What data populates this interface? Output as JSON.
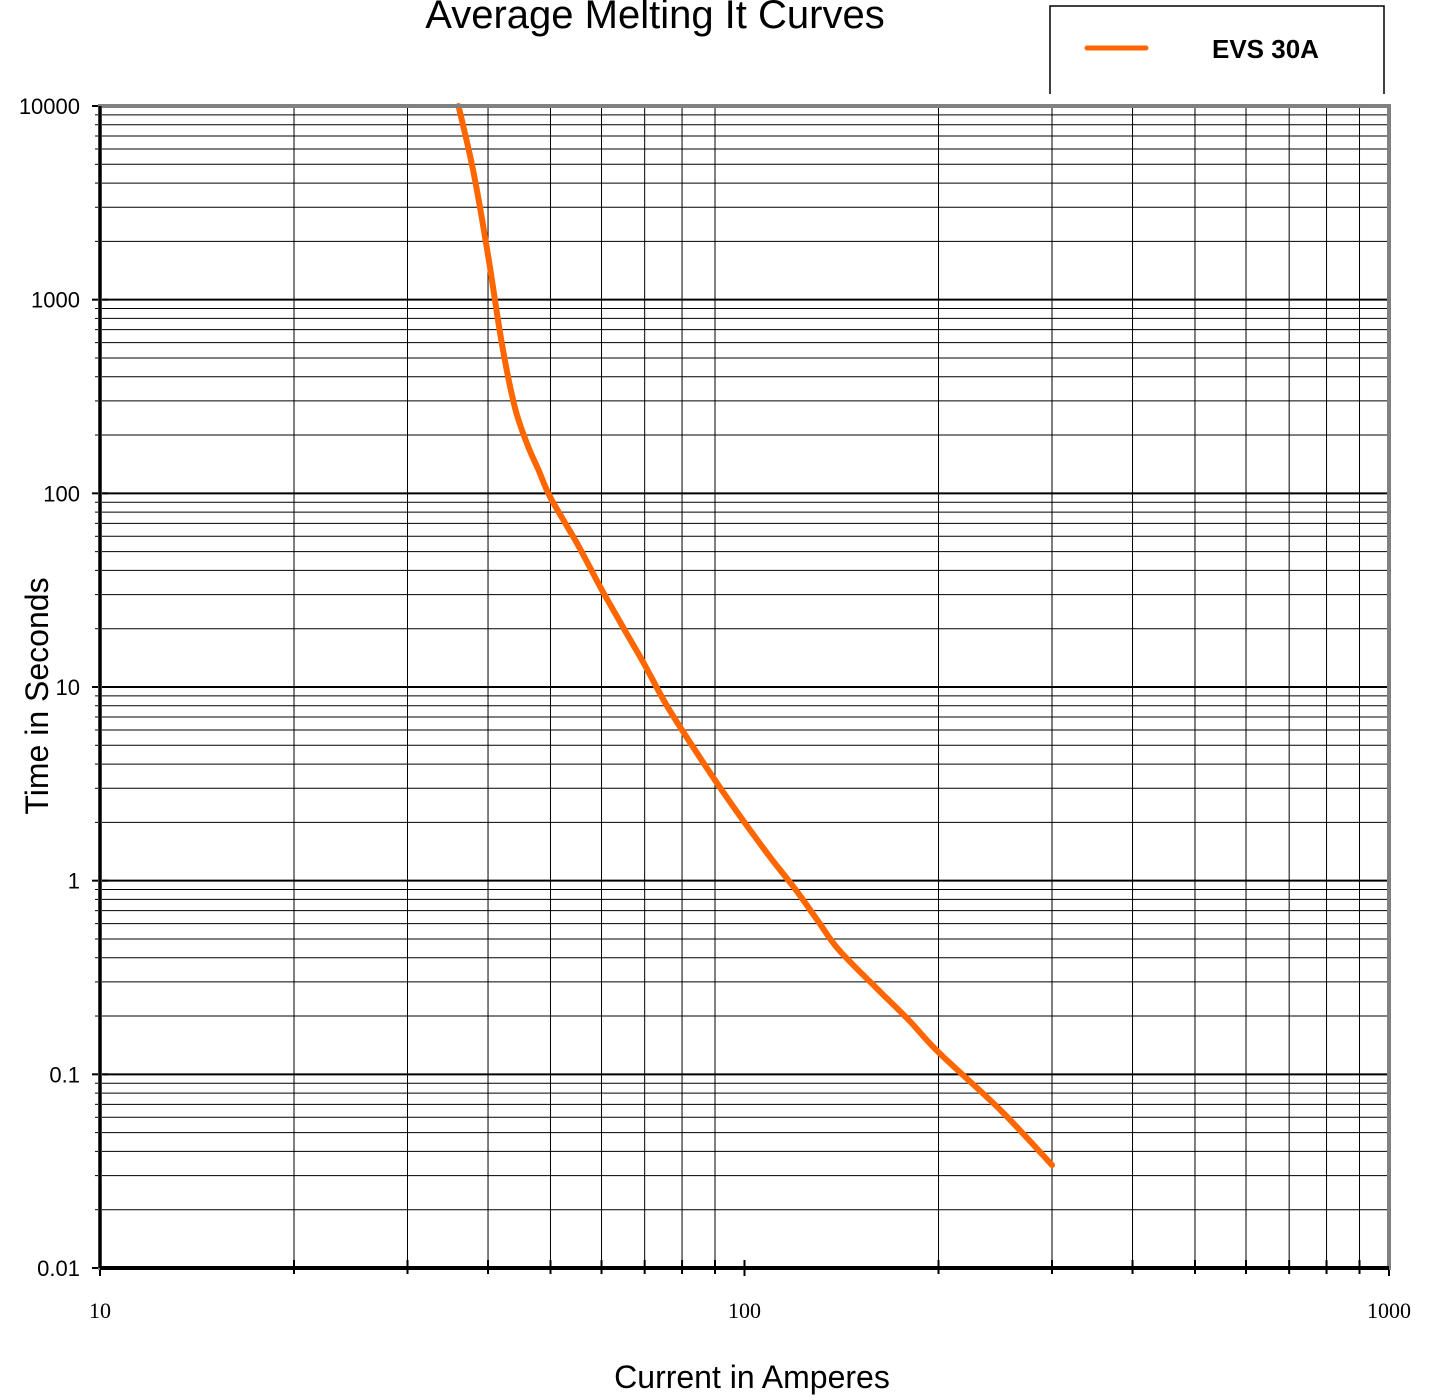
{
  "chart_data": {
    "type": "line",
    "title": "Average Melting It Curves",
    "xlabel": "Current in Amperes",
    "ylabel": "Time in Seconds",
    "xscale": "log",
    "yscale": "log",
    "xlim": [
      10,
      1000
    ],
    "ylim": [
      0.01,
      10000
    ],
    "xticks": [
      "10",
      "100",
      "1000"
    ],
    "yticks": [
      "0.01",
      "0.1",
      "1",
      "10",
      "100",
      "1000",
      "10000"
    ],
    "grid": true,
    "legend": "top-right",
    "series": [
      {
        "name": "EVS 30A",
        "color": "#FF6600",
        "x": [
          36,
          38,
          40,
          42,
          44,
          46,
          48,
          50,
          55,
          60,
          65,
          70,
          75,
          80,
          90,
          100,
          110,
          120,
          130,
          140,
          160,
          180,
          200,
          250,
          300
        ],
        "y": [
          10000,
          4500,
          1700,
          600,
          280,
          180,
          130,
          95,
          55,
          32,
          20,
          13,
          8.5,
          6,
          3.3,
          2.0,
          1.3,
          0.9,
          0.62,
          0.44,
          0.28,
          0.19,
          0.13,
          0.065,
          0.034
        ]
      }
    ]
  }
}
